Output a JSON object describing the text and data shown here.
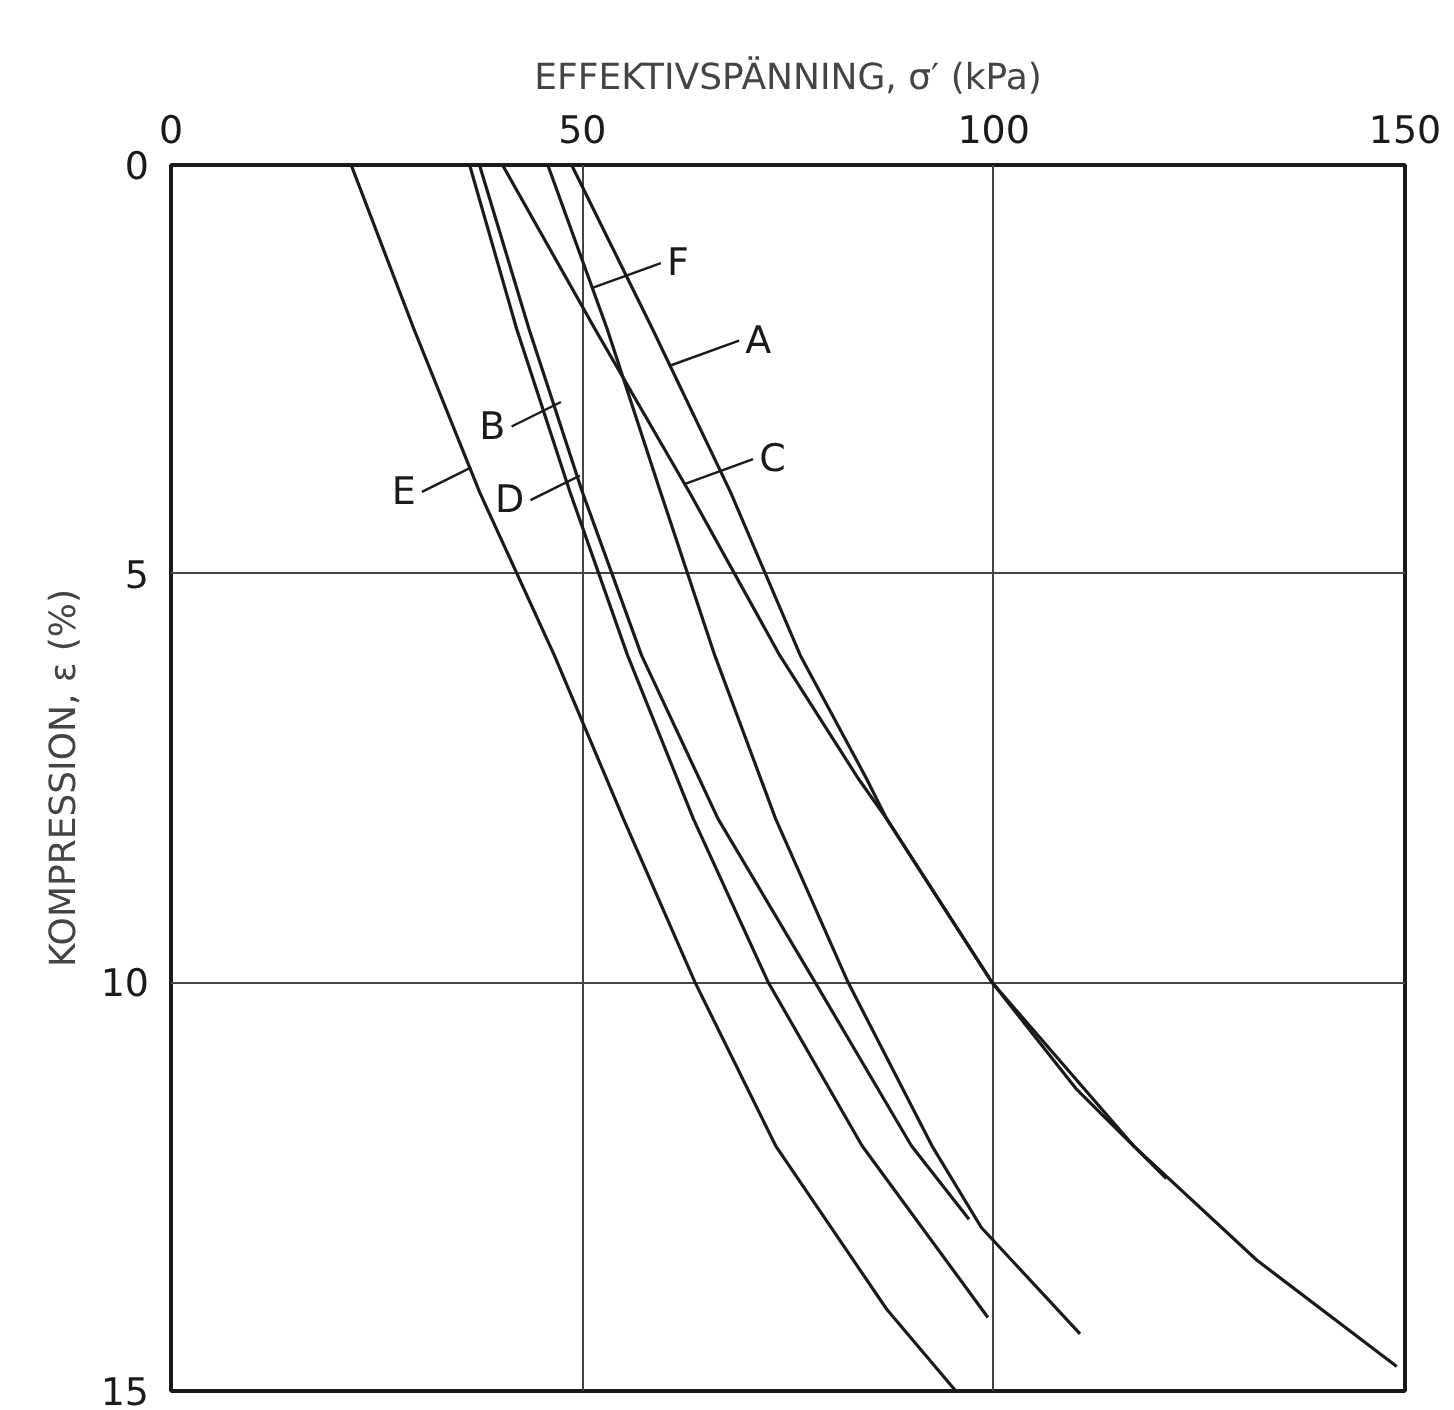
{
  "chart_data": {
    "type": "line",
    "xlabel": "EFFEKTIVSPÄNNING, σ′ (kPa)",
    "ylabel": "KOMPRESSION, ε (%)",
    "xlim": [
      0,
      150
    ],
    "xticks": [
      0,
      50,
      100,
      150
    ],
    "ylim": [
      15,
      0
    ],
    "yticks": [
      0,
      5,
      10,
      15
    ],
    "grid": true,
    "series": [
      {
        "color": "#1a1a1a",
        "x": [
          48.7,
          58.5,
          68,
          76.5,
          84.5,
          87,
          99.8,
          110,
          121
        ],
        "values": [
          0,
          2,
          4,
          6,
          7.5,
          8,
          10,
          11.3,
          12.4
        ]
      },
      {
        "color": "#1a1a1a",
        "x": [
          37.5,
          43.5,
          50,
          57.2,
          66.5,
          78.3,
          90,
          97
        ],
        "values": [
          0,
          2,
          4,
          6,
          8,
          10,
          12,
          12.9
        ]
      },
      {
        "color": "#1a1a1a",
        "x": [
          40.3,
          51.5,
          63,
          74,
          83.5,
          87,
          99.8,
          117,
          132,
          149
        ],
        "values": [
          0,
          2,
          4,
          6,
          7.5,
          8,
          10,
          12,
          13.4,
          14.7
        ]
      },
      {
        "color": "#1a1a1a",
        "x": [
          36.3,
          42,
          48.5,
          55.5,
          63.5,
          72.6,
          84,
          99.3
        ],
        "values": [
          0,
          2,
          4,
          6,
          8,
          10,
          12,
          14.1
        ]
      },
      {
        "color": "#1a1a1a",
        "x": [
          21.9,
          29.5,
          37.5,
          46.6,
          55,
          63.7,
          73.5,
          87,
          95.4
        ],
        "values": [
          0,
          2,
          4,
          6,
          8,
          10,
          12,
          14,
          15
        ]
      },
      {
        "color": "#1a1a1a",
        "x": [
          45.8,
          53,
          59.5,
          66.1,
          73.5,
          82.3,
          92.5,
          98.5,
          110.5
        ],
        "values": [
          0,
          2,
          4,
          6,
          8,
          10,
          12,
          13,
          14.3
        ]
      }
    ],
    "annotations": [
      {
        "text": "F",
        "x": 51.3,
        "y": 1.5
      },
      {
        "text": "A",
        "x": 60.8,
        "y": 2.45
      },
      {
        "text": "B",
        "x": 47.4,
        "y": 2.9
      },
      {
        "text": "C",
        "x": 62.5,
        "y": 3.9
      },
      {
        "text": "E",
        "x": 36.5,
        "y": 3.7
      },
      {
        "text": "D",
        "x": 49.7,
        "y": 3.8
      }
    ]
  }
}
